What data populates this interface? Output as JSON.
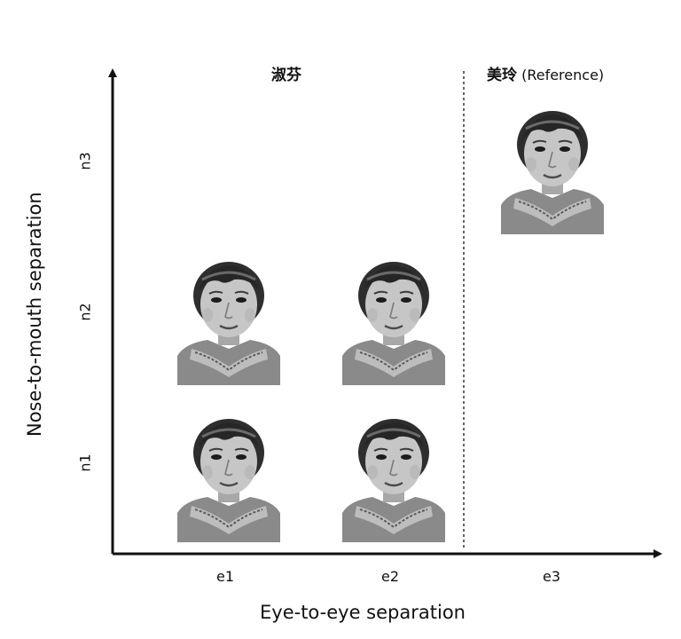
{
  "headers": {
    "left_group": "淑芬",
    "right_group_name": "美玲",
    "right_group_note": "(Reference)"
  },
  "axes": {
    "x_title": "Eye-to-eye separation",
    "y_title": "Nose-to-mouth separation",
    "x_ticks": [
      "e1",
      "e2",
      "e3"
    ],
    "y_ticks": [
      "n1",
      "n2",
      "n3"
    ]
  },
  "faces": [
    {
      "id": "e1-n1",
      "eye": "e1",
      "nose": "n1",
      "group": "淑芬"
    },
    {
      "id": "e2-n1",
      "eye": "e2",
      "nose": "n1",
      "group": "淑芬"
    },
    {
      "id": "e1-n2",
      "eye": "e1",
      "nose": "n2",
      "group": "淑芬"
    },
    {
      "id": "e2-n2",
      "eye": "e2",
      "nose": "n2",
      "group": "淑芬"
    },
    {
      "id": "e3-n3",
      "eye": "e3",
      "nose": "n3",
      "group": "美玲"
    }
  ],
  "colors": {
    "axis": "#111111",
    "background": "#ffffff",
    "face_bg": "#ffffff"
  }
}
